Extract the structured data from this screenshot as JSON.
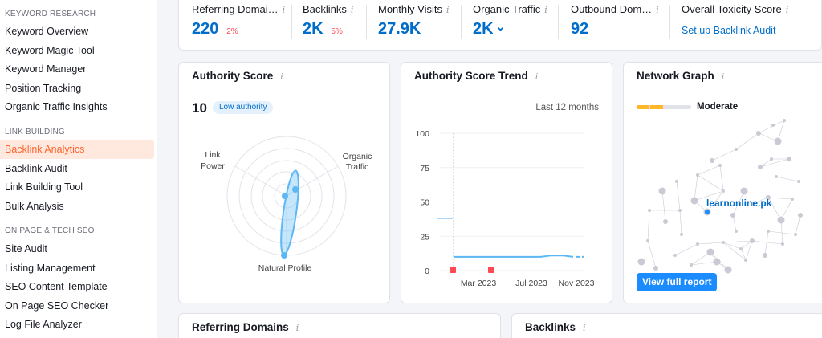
{
  "sidebar": {
    "sections": [
      {
        "title": "KEYWORD RESEARCH",
        "items": [
          "Keyword Overview",
          "Keyword Magic Tool",
          "Keyword Manager",
          "Position Tracking",
          "Organic Traffic Insights"
        ]
      },
      {
        "title": "LINK BUILDING",
        "items": [
          "Backlink Analytics",
          "Backlink Audit",
          "Link Building Tool",
          "Bulk Analysis"
        ]
      },
      {
        "title": "ON PAGE & TECH SEO",
        "items": [
          "Site Audit",
          "Listing Management",
          "SEO Content Template",
          "On Page SEO Checker",
          "Log File Analyzer"
        ]
      }
    ],
    "active_item": "Backlink Analytics"
  },
  "metrics": [
    {
      "label": "Referring Domai…",
      "value": "220",
      "delta": "−2%"
    },
    {
      "label": "Backlinks",
      "value": "2K",
      "delta": "−5%"
    },
    {
      "label": "Monthly Visits",
      "value": "27.9K",
      "delta": ""
    },
    {
      "label": "Organic Traffic",
      "value": "2K",
      "delta": ""
    },
    {
      "label": "Outbound Dom…",
      "value": "92",
      "delta": ""
    },
    {
      "label": "Overall Toxicity Score",
      "link": "Set up Backlink Audit"
    }
  ],
  "icons": {
    "info": "i",
    "chevron": "⌄"
  },
  "authority": {
    "title": "Authority Score",
    "score": "10",
    "badge": "Low authority",
    "axes": {
      "link_power": [
        "Link",
        "Power"
      ],
      "organic_traffic": [
        "Organic",
        "Traffic"
      ],
      "natural_profile": "Natural Profile"
    }
  },
  "trend": {
    "title": "Authority Score Trend",
    "period": "Last 12 months",
    "chart_data": {
      "type": "line",
      "y_ticks": [
        "100",
        "75",
        "50",
        "25",
        "0"
      ],
      "x_ticks": [
        "Mar 2023",
        "Jul 2023",
        "Nov 2023"
      ],
      "ylim": [
        0,
        100
      ],
      "series": [
        {
          "values": [
            10,
            10,
            10,
            10,
            10,
            10,
            10,
            10,
            10,
            11,
            11,
            10
          ]
        }
      ]
    }
  },
  "network": {
    "title": "Network Graph",
    "level": "Moderate",
    "domain": "learnonline.pk",
    "button": "View full report"
  },
  "bottom": {
    "referring_title": "Referring Domains",
    "backlinks_title": "Backlinks"
  },
  "colors": {
    "accent": "#006dca",
    "brand": "#ff642d",
    "negative": "#ff4953",
    "line": "#5bb8f5",
    "marker": "#ff4953",
    "gauge": "#ffb727"
  }
}
